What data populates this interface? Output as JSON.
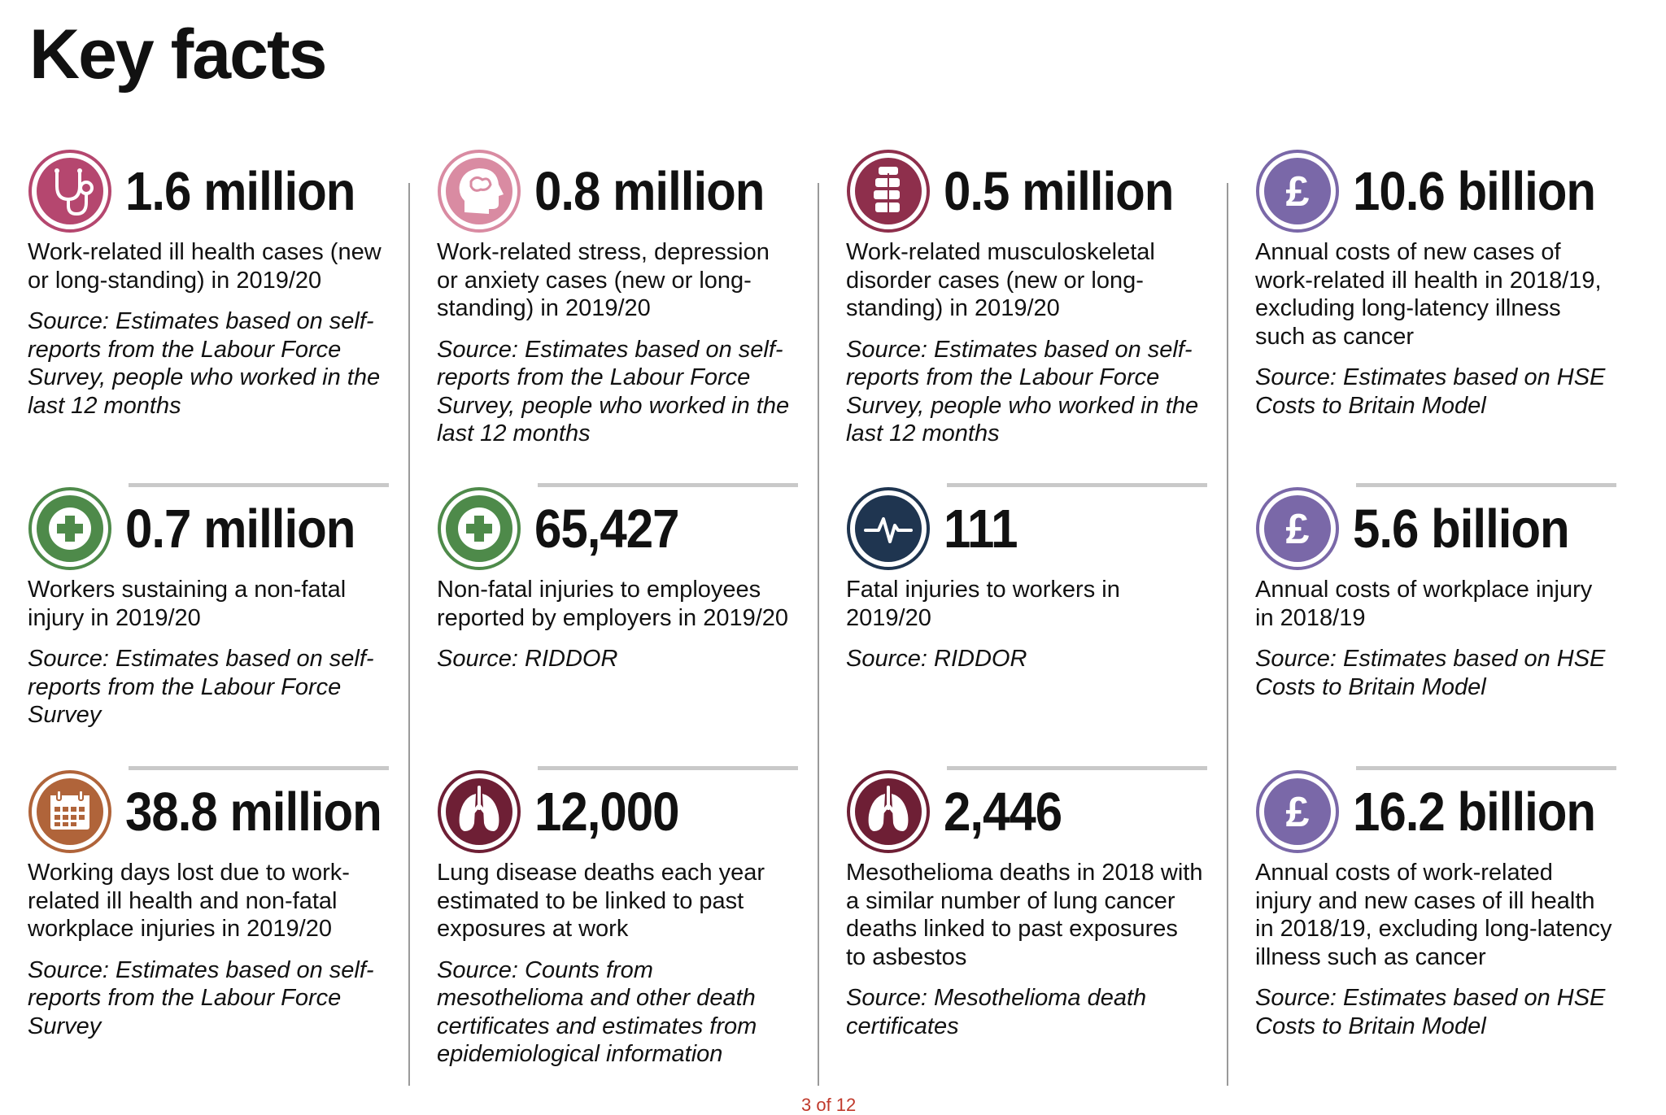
{
  "page": {
    "title": "Key facts",
    "footer": "3 of 12"
  },
  "cards": [
    {
      "icon": "stethoscope-icon",
      "color": "#b5476f",
      "stat": "1.6 million",
      "description": "Work-related ill health cases (new or long-standing) in 2019/20",
      "source": "Source: Estimates based on self-reports from the Labour Force Survey, people who worked in the last 12 months"
    },
    {
      "icon": "head-icon",
      "color": "#d98ba2",
      "stat": "0.8 million",
      "description": "Work-related stress, depression or anxiety cases (new or long-standing) in 2019/20",
      "source": "Source: Estimates based on self-reports from the Labour Force Survey, people who worked in the last 12 months"
    },
    {
      "icon": "spine-icon",
      "color": "#8e2f4c",
      "stat": "0.5 million",
      "description": "Work-related musculoskeletal disorder cases (new or long-standing) in 2019/20",
      "source": "Source: Estimates based on self-reports from the Labour Force Survey, people who worked in the last 12 months"
    },
    {
      "icon": "pound-icon",
      "color": "#7a68a8",
      "stat": "10.6 billion",
      "description": "Annual costs of new cases of work-related ill health in 2018/19, excluding long-latency illness such as cancer",
      "source": "Source: Estimates based on HSE Costs to Britain Model"
    },
    {
      "icon": "medical-cross-icon",
      "color": "#4e8a4a",
      "stat": "0.7 million",
      "description": "Workers sustaining a non-fatal injury in 2019/20",
      "source": "Source: Estimates based on self-reports from the Labour Force Survey"
    },
    {
      "icon": "medical-cross-icon",
      "color": "#4e8a4a",
      "stat": "65,427",
      "description": "Non-fatal injuries to employees reported by employers in 2019/20",
      "source": "Source: RIDDOR"
    },
    {
      "icon": "heartbeat-icon",
      "color": "#1f3550",
      "stat": "111",
      "description": "Fatal injuries to workers in 2019/20",
      "source": "Source: RIDDOR"
    },
    {
      "icon": "pound-icon",
      "color": "#7a68a8",
      "stat": "5.6 billion",
      "description": "Annual costs of workplace injury in 2018/19",
      "source": "Source: Estimates based on HSE Costs to Britain Model"
    },
    {
      "icon": "calendar-icon",
      "color": "#b0643a",
      "stat": "38.8 million",
      "description": "Working days lost due to work-related ill health and non-fatal workplace injuries in 2019/20",
      "source": "Source: Estimates based on self-reports from the Labour Force Survey"
    },
    {
      "icon": "lungs-icon",
      "color": "#6e1f35",
      "stat": "12,000",
      "description": "Lung disease deaths each year estimated to be linked to past exposures at work",
      "source": "Source: Counts from mesothelioma and other death certificates and estimates from epidemiological information"
    },
    {
      "icon": "lungs-icon",
      "color": "#6e1f35",
      "stat": "2,446",
      "description": "Mesothelioma deaths in 2018 with a similar number of lung cancer deaths linked to past exposures to asbestos",
      "source": "Source: Mesothelioma death certificates"
    },
    {
      "icon": "pound-icon",
      "color": "#7a68a8",
      "stat": "16.2 billion",
      "description": "Annual costs of work-related injury and new cases of ill health in 2018/19, excluding long-latency illness such as cancer",
      "source": "Source: Estimates based on HSE Costs to Britain Model"
    }
  ]
}
